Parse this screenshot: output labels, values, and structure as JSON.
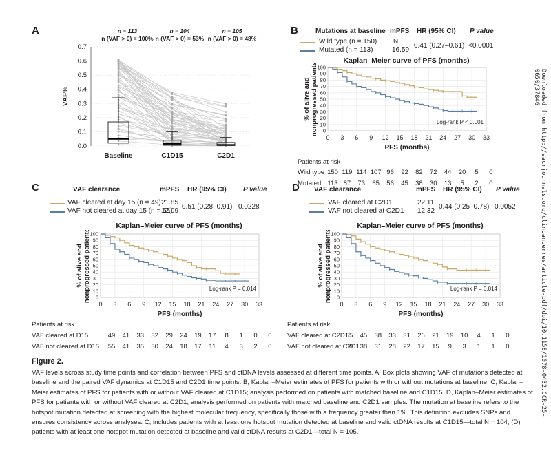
{
  "panel_a": {
    "label": "A",
    "header": [
      {
        "n": "n = 113",
        "pct": "n (VAF > 0) = 100%"
      },
      {
        "n": "n = 104",
        "pct": "n (VAF > 0) = 53%"
      },
      {
        "n": "n = 105",
        "pct": "n (VAF > 0) = 48%"
      }
    ],
    "ylabel": "VAF%",
    "yticks": [
      "0.0",
      "0.1",
      "0.2",
      "0.3",
      "0.4",
      "0.5",
      "0.6",
      "0.7"
    ],
    "categories": [
      "Baseline",
      "C1D15",
      "C2D1"
    ]
  },
  "panel_b": {
    "label": "B",
    "table_headers": [
      "Mutations at baseline",
      "mPFS",
      "HR (95% CI)",
      "P value"
    ],
    "rows": [
      {
        "label": "Wild type (n = 150)",
        "mpfs": "NE"
      },
      {
        "label": "Mutated (n = 113)",
        "mpfs": "16.59"
      }
    ],
    "hr": "0.41 (0.27–0.61)",
    "p": "<0.0001",
    "km_title": "Kaplan–Meier curve of PFS (months)",
    "logrank": "Log-rank P < 0.001",
    "risk_title": "Patients at risk",
    "risk": [
      {
        "label": "Wild type",
        "values": [
          "150",
          "119",
          "114",
          "107",
          "96",
          "92",
          "82",
          "72",
          "44",
          "20",
          "5",
          "0"
        ]
      },
      {
        "label": "Mutated",
        "values": [
          "113",
          "87",
          "73",
          "65",
          "56",
          "45",
          "38",
          "30",
          "13",
          "5",
          "2",
          "0"
        ]
      }
    ]
  },
  "panel_c": {
    "label": "C",
    "table_headers": [
      "VAF clearance",
      "mPFS",
      "HR (95% CI)",
      "P value"
    ],
    "rows": [
      {
        "label": "VAF cleared at day 15 (n = 49)",
        "mpfs": "21.85"
      },
      {
        "label": "VAF not cleared at day 15 (n = 55)",
        "mpfs": "12.09"
      }
    ],
    "hr": "0.51 (0.28–0.91)",
    "p": "0.0228",
    "km_title": "Kaplan–Meier curve of PFS (months)",
    "logrank": "Log-rank P = 0.014",
    "risk_title": "Patients at risk",
    "risk": [
      {
        "label": "VAF cleared at D15",
        "values": [
          "49",
          "41",
          "33",
          "32",
          "29",
          "24",
          "19",
          "17",
          "8",
          "1",
          "0",
          "0"
        ]
      },
      {
        "label": "VAF not cleared at D15",
        "values": [
          "55",
          "41",
          "35",
          "30",
          "24",
          "18",
          "17",
          "11",
          "4",
          "3",
          "2",
          "0"
        ]
      }
    ]
  },
  "panel_d": {
    "label": "D",
    "table_headers": [
      "VAF clearance",
      "mPFS",
      "HR (95% CI)",
      "P value"
    ],
    "rows": [
      {
        "label": "VAF cleared at C2D1",
        "mpfs": "22.11"
      },
      {
        "label": "VAF not cleared at C2D1",
        "mpfs": "12.32"
      }
    ],
    "hr": "0.44 (0.25–0.78)",
    "p": "0.0052",
    "km_title": "Kaplan–Meier curve of PFS (months)",
    "logrank": "Log-rank P = 0.014",
    "risk_title": "Patients at risk",
    "risk": [
      {
        "label": "VAF cleared at C2D1",
        "values": [
          "55",
          "45",
          "38",
          "33",
          "31",
          "26",
          "21",
          "19",
          "10",
          "4",
          "1",
          "0"
        ]
      },
      {
        "label": "VAF not cleared at C2D1",
        "values": [
          "50",
          "38",
          "31",
          "28",
          "22",
          "17",
          "15",
          "9",
          "3",
          "1",
          "1",
          "0"
        ]
      }
    ]
  },
  "km_axes": {
    "xticks": [
      "0",
      "3",
      "6",
      "9",
      "12",
      "15",
      "18",
      "21",
      "24",
      "27",
      "30",
      "33"
    ],
    "yticks": [
      "0",
      "10",
      "20",
      "30",
      "40",
      "50",
      "60",
      "70",
      "80",
      "90",
      "100"
    ],
    "xlabel": "PFS (months)",
    "ylabel_line1": "% of alive and",
    "ylabel_line2": "nonprogressed patients"
  },
  "colors": {
    "tan": "#c9a867",
    "blue": "#5b7fa3",
    "grid": "#e6e6e6",
    "box": "#333333"
  },
  "caption": {
    "title": "Figure 2.",
    "text": "VAF levels across study time points and correlation between PFS and ctDNA levels assessed at different time points. A, Box plots showing VAF of mutations detected at baseline and the paired VAF dynamics at C1D15 and C2D1 time points. B, Kaplan–Meier estimates of PFS for patients with or without mutations at baseline. C, Kaplan–Meier estimates of PFS for patients with or without VAF cleared at C1D15; analysis performed on patients with matched baseline and C1D15. D, Kaplan–Meier estimates of PFS for patients with or without VAF cleared at C2D1; analysis performed on patients with matched baseline and C2D1 samples. The mutation at baseline refers to the hotspot mutation detected at screening with the highest molecular frequency, specifically those with a frequency greater than 1%. This definition excludes SNPs and ensures consistency across analyses. C, includes patients with at least one hotspot mutation detected at baseline and valid ctDNA results at C1D15—total N = 104; (D) patients with at least one hotspot mutation detected at baseline and valid ctDNA results at C2D1—total N = 105."
  },
  "side_note": "Downloaded from http://aacrjournals.org/clincancerres/article-pdf/doi/10.1158/1078-0432.CCR-25-0650/37846",
  "chart_data": [
    {
      "type": "box",
      "panel": "A",
      "categories": [
        "Baseline",
        "C1D15",
        "C2D1"
      ],
      "ylabel": "VAF%",
      "ylim": [
        0,
        0.7
      ],
      "medians": [
        0.05,
        0.015,
        0.008
      ],
      "q1": [
        0.02,
        0.005,
        0.003
      ],
      "q3": [
        0.17,
        0.04,
        0.025
      ],
      "whisker_high": [
        0.34,
        0.1,
        0.06
      ]
    },
    {
      "type": "line",
      "panel": "B",
      "xlabel": "PFS (months)",
      "xlim": [
        0,
        33
      ],
      "ylim": [
        0,
        100
      ],
      "series": [
        {
          "name": "Wild type",
          "x": [
            0,
            1,
            2,
            3,
            4,
            5,
            6,
            7,
            8,
            9,
            10,
            11,
            12,
            13,
            14,
            15,
            16,
            17,
            18,
            19,
            20,
            21,
            22,
            23,
            24,
            25,
            26,
            27,
            28,
            29,
            30,
            31
          ],
          "y": [
            100,
            99,
            97,
            95,
            92,
            90,
            88,
            86,
            85,
            83,
            82,
            80,
            79,
            78,
            76,
            75,
            73,
            71,
            69,
            68,
            66,
            65,
            64,
            63,
            62,
            62,
            62,
            62,
            55,
            53,
            53,
            53
          ]
        },
        {
          "name": "Mutated",
          "x": [
            0,
            1,
            2,
            3,
            4,
            5,
            6,
            7,
            8,
            9,
            10,
            11,
            12,
            13,
            14,
            15,
            16,
            17,
            18,
            19,
            20,
            21,
            22,
            23,
            24,
            25,
            26,
            27,
            28,
            29,
            30,
            31
          ],
          "y": [
            100,
            97,
            92,
            85,
            78,
            74,
            70,
            68,
            65,
            62,
            60,
            57,
            54,
            52,
            50,
            48,
            46,
            44,
            43,
            42,
            40,
            38,
            36,
            34,
            32,
            31,
            31,
            31,
            31,
            31,
            31,
            31
          ]
        }
      ]
    },
    {
      "type": "line",
      "panel": "C",
      "xlabel": "PFS (months)",
      "xlim": [
        0,
        33
      ],
      "ylim": [
        0,
        100
      ],
      "series": [
        {
          "name": "VAF cleared at day 15",
          "x": [
            0,
            1,
            2,
            3,
            4,
            5,
            6,
            7,
            8,
            9,
            10,
            11,
            12,
            13,
            14,
            15,
            16,
            17,
            18,
            19,
            20,
            21,
            22,
            23,
            24,
            25,
            26,
            27,
            28,
            29
          ],
          "y": [
            100,
            98,
            96,
            94,
            90,
            86,
            82,
            80,
            78,
            76,
            74,
            72,
            70,
            68,
            65,
            62,
            60,
            58,
            55,
            50,
            47,
            45,
            45,
            45,
            42,
            38,
            37,
            37,
            37,
            37
          ]
        },
        {
          "name": "VAF not cleared at day 15",
          "x": [
            0,
            1,
            2,
            3,
            4,
            5,
            6,
            7,
            8,
            9,
            10,
            11,
            12,
            13,
            14,
            15,
            16,
            17,
            18,
            19,
            20,
            21,
            22,
            23,
            24,
            25,
            26,
            27,
            28,
            29,
            30,
            31
          ],
          "y": [
            100,
            95,
            85,
            76,
            72,
            68,
            62,
            60,
            57,
            55,
            52,
            50,
            47,
            45,
            43,
            40,
            38,
            35,
            33,
            31,
            30,
            29,
            27,
            27,
            26,
            26,
            26,
            26,
            26,
            26,
            26,
            26
          ]
        }
      ]
    },
    {
      "type": "line",
      "panel": "D",
      "xlabel": "PFS (months)",
      "xlim": [
        0,
        33
      ],
      "ylim": [
        0,
        100
      ],
      "series": [
        {
          "name": "VAF cleared at C2D1",
          "x": [
            0,
            1,
            2,
            3,
            4,
            5,
            6,
            7,
            8,
            9,
            10,
            11,
            12,
            13,
            14,
            15,
            16,
            17,
            18,
            19,
            20,
            21,
            22,
            23,
            24,
            25,
            26,
            27,
            28,
            29,
            30,
            31
          ],
          "y": [
            100,
            99,
            97,
            92,
            88,
            84,
            80,
            78,
            76,
            74,
            72,
            70,
            68,
            66,
            64,
            62,
            60,
            58,
            56,
            54,
            52,
            48,
            45,
            45,
            43,
            43,
            43,
            43,
            43,
            43,
            43,
            43
          ]
        },
        {
          "name": "VAF not cleared at C2D1",
          "x": [
            0,
            1,
            2,
            3,
            4,
            5,
            6,
            7,
            8,
            9,
            10,
            11,
            12,
            13,
            14,
            15,
            16,
            17,
            18,
            19,
            20,
            21,
            22,
            23,
            24,
            25,
            26,
            27,
            28,
            29,
            30,
            31
          ],
          "y": [
            100,
            95,
            85,
            72,
            66,
            62,
            58,
            54,
            50,
            47,
            44,
            41,
            39,
            37,
            35,
            34,
            32,
            30,
            28,
            26,
            24,
            24,
            22,
            22,
            22,
            22,
            22,
            22,
            22,
            22,
            22,
            22
          ]
        }
      ]
    }
  ]
}
